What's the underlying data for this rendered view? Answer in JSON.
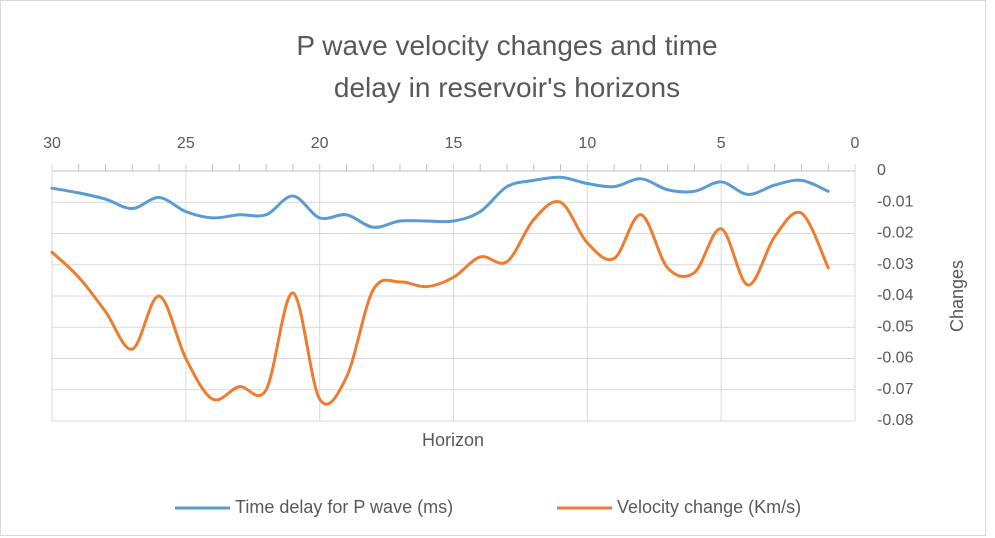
{
  "chart_data": {
    "type": "line",
    "title": "P wave velocity changes and time delay in reservoir's horizons",
    "x_label": "Horizon",
    "y_label": "Changes",
    "x": [
      30,
      29,
      28,
      27,
      26,
      25,
      24,
      23,
      22,
      21,
      20,
      19,
      18,
      17,
      16,
      15,
      14,
      13,
      12,
      11,
      10,
      9,
      8,
      7,
      6,
      5,
      4,
      3,
      2,
      1
    ],
    "series": [
      {
        "name": "Time delay for P wave (ms)",
        "color": "#5b9bd5",
        "values": [
          -0.0055,
          -0.007,
          -0.009,
          -0.012,
          -0.0085,
          -0.013,
          -0.015,
          -0.014,
          -0.014,
          -0.008,
          -0.015,
          -0.014,
          -0.018,
          -0.016,
          -0.016,
          -0.016,
          -0.013,
          -0.005,
          -0.003,
          -0.002,
          -0.004,
          -0.005,
          -0.0025,
          -0.006,
          -0.0065,
          -0.0035,
          -0.0075,
          -0.0045,
          -0.003,
          -0.0065
        ]
      },
      {
        "name": "Velocity change (Km/s)",
        "color": "#ed7d31",
        "values": [
          -0.026,
          -0.034,
          -0.045,
          -0.057,
          -0.04,
          -0.06,
          -0.073,
          -0.069,
          -0.07,
          -0.039,
          -0.073,
          -0.066,
          -0.038,
          -0.0355,
          -0.037,
          -0.034,
          -0.0275,
          -0.029,
          -0.0155,
          -0.01,
          -0.023,
          -0.028,
          -0.014,
          -0.031,
          -0.0325,
          -0.0185,
          -0.0365,
          -0.021,
          -0.0135,
          -0.031
        ]
      }
    ],
    "xlim": [
      30,
      0
    ],
    "xticks": [
      30,
      25,
      20,
      15,
      10,
      5,
      0
    ],
    "ylim": [
      -0.08,
      0
    ],
    "yticks": [
      0,
      -0.01,
      -0.02,
      -0.03,
      -0.04,
      -0.05,
      -0.06,
      -0.07,
      -0.08
    ],
    "x_axis_position": "top",
    "y_axis_position": "right",
    "grid": true,
    "legend": "bottom"
  }
}
